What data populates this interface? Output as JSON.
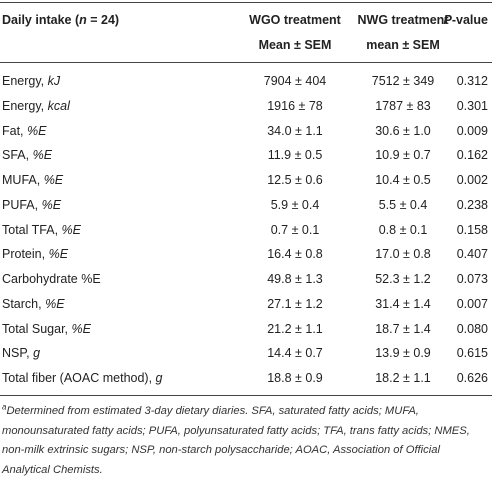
{
  "table": {
    "header": {
      "col0": [
        "Daily intake (",
        "n",
        " = 24)"
      ],
      "col1": [
        "WGO treatment",
        "Mean ± SEM"
      ],
      "col2": [
        "NWG treatment",
        "mean ± SEM"
      ],
      "col3": [
        "P",
        "-value"
      ]
    },
    "rows": [
      {
        "name": "Energy,",
        "unit": "kJ",
        "wgo": "7904 ± 404",
        "nwg": "7512 ± 349",
        "p": "0.312"
      },
      {
        "name": "Energy,",
        "unit": "kcal",
        "wgo": "1916 ± 78",
        "nwg": "1787 ± 83",
        "p": "0.301"
      },
      {
        "name": "Fat,",
        "unit": "%E",
        "wgo": "34.0 ± 1.1",
        "nwg": "30.6 ± 1.0",
        "p": "0.009"
      },
      {
        "name": "SFA,",
        "unit": "%E",
        "wgo": "11.9 ± 0.5",
        "nwg": "10.9 ± 0.7",
        "p": "0.162"
      },
      {
        "name": "MUFA,",
        "unit": "%E",
        "wgo": "12.5 ± 0.6",
        "nwg": "10.4 ± 0.5",
        "p": "0.002"
      },
      {
        "name": "PUFA,",
        "unit": "%E",
        "wgo": "5.9 ± 0.4",
        "nwg": "5.5 ± 0.4",
        "p": "0.238"
      },
      {
        "name": "Total TFA,",
        "unit": "%E",
        "wgo": "0.7 ± 0.1",
        "nwg": "0.8 ± 0.1",
        "p": "0.158"
      },
      {
        "name": "Protein,",
        "unit": "%E",
        "wgo": "16.4 ± 0.8",
        "nwg": "17.0 ± 0.8",
        "p": "0.407"
      },
      {
        "name": "Carbohydrate %E",
        "wgo": "49.8 ± 1.3",
        "nwg": "52.3 ± 1.2",
        "p": "0.073"
      },
      {
        "name": "Starch,",
        "unit": "%E",
        "wgo": "27.1 ± 1.2",
        "nwg": "31.4 ± 1.4",
        "p": "0.007"
      },
      {
        "name": "Total Sugar,",
        "unit": "%E",
        "wgo": "21.2 ± 1.1",
        "nwg": "18.7 ± 1.4",
        "p": "0.080"
      },
      {
        "name": "NSP,",
        "unit": "g",
        "wgo": "14.4 ± 0.7",
        "nwg": "13.9 ± 0.9",
        "p": "0.615"
      },
      {
        "name": "Total fiber (AOAC method),",
        "unit": "g",
        "wgo": "18.8 ± 0.9",
        "nwg": "18.2 ± 1.1",
        "p": "0.626"
      }
    ],
    "footnote": {
      "marker": "a",
      "text": "Determined from estimated 3-day dietary diaries. SFA, saturated fatty acids; MUFA, monounsaturated fatty acids; PUFA, polyunsaturated fatty acids; TFA, trans fatty acids; NMES, non-milk extrinsic sugars; NSP, non-starch polysaccharide; AOAC, Association of Official Analytical Chemists."
    }
  }
}
